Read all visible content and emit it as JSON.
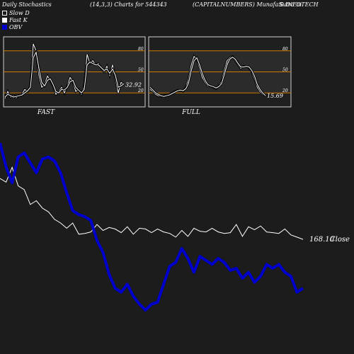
{
  "header": {
    "left": "Daily Stochastics",
    "middle": "(14,3,3) Charts for 544343",
    "right_title": "(CAPITALNUMBERS) MunafaSutra.in",
    "right_company": "S INFOTECH"
  },
  "legend": {
    "items": [
      "Slow  D",
      "Fast K",
      "OBV"
    ]
  },
  "colors": {
    "background": "#1c1c1c",
    "panel": "#2b2b2b",
    "level_line": "#cc7a00",
    "price_line": "#ffffff",
    "obv_line": "#0000cc"
  },
  "footer": "",
  "chart_data": [
    {
      "type": "line",
      "name_label": "FAST",
      "ylim": [
        0,
        100
      ],
      "levels": [
        20,
        50,
        80
      ],
      "level_labels": [
        "20",
        "50",
        "80"
      ],
      "last_value_label": "32.92",
      "series": [
        {
          "values": [
            12,
            22,
            14,
            16,
            13,
            17,
            18,
            25,
            22,
            30,
            90,
            80,
            45,
            28,
            32,
            44,
            38,
            30,
            18,
            22,
            28,
            20,
            30,
            42,
            36,
            22,
            25,
            18,
            30,
            75,
            62,
            66,
            60,
            62,
            55,
            50,
            58,
            45,
            60,
            40,
            20,
            35,
            32
          ]
        },
        {
          "values": [
            14,
            18,
            16,
            14,
            15,
            16,
            17,
            20,
            23,
            28,
            70,
            78,
            55,
            35,
            30,
            38,
            40,
            32,
            22,
            20,
            25,
            24,
            28,
            36,
            38,
            28,
            24,
            20,
            25,
            60,
            64,
            62,
            60,
            60,
            56,
            52,
            54,
            48,
            54,
            45,
            28,
            30,
            33
          ]
        }
      ]
    },
    {
      "type": "line",
      "name_label": "FULL",
      "ylim": [
        0,
        100
      ],
      "levels": [
        20,
        50,
        80
      ],
      "level_labels": [
        "20",
        "50",
        "80"
      ],
      "last_value_label": "15.69",
      "series": [
        {
          "values": [
            25,
            22,
            18,
            16,
            15,
            16,
            17,
            18,
            20,
            22,
            24,
            24,
            22,
            28,
            40,
            60,
            72,
            68,
            55,
            42,
            35,
            30,
            30,
            28,
            26,
            30,
            36,
            52,
            66,
            70,
            72,
            66,
            60,
            55,
            58,
            58,
            56,
            50,
            40,
            28,
            22,
            18,
            16
          ]
        },
        {
          "values": [
            28,
            24,
            20,
            18,
            16,
            15,
            16,
            17,
            19,
            21,
            23,
            24,
            23,
            26,
            34,
            52,
            66,
            70,
            60,
            48,
            38,
            32,
            30,
            29,
            27,
            29,
            33,
            46,
            60,
            68,
            71,
            68,
            62,
            57,
            57,
            58,
            57,
            52,
            44,
            32,
            25,
            20,
            16
          ]
        }
      ]
    },
    {
      "type": "line",
      "close_label": "168.10",
      "close_word": "Close",
      "series": [
        {
          "values": [
            250,
            245,
            265,
            240,
            235,
            215,
            220,
            210,
            205,
            195,
            190,
            183,
            190,
            175,
            176,
            178,
            188,
            180,
            184,
            182,
            177,
            185,
            175,
            183,
            182,
            177,
            182,
            178,
            176,
            171,
            180,
            172,
            183,
            179,
            178,
            183,
            178,
            176,
            177,
            188,
            172,
            185,
            181,
            186,
            178,
            177,
            176,
            182,
            174,
            171,
            168
          ]
        },
        {
          "values": [
            155,
            143,
            135,
            148,
            150,
            145,
            140,
            147,
            148,
            146,
            140,
            130,
            121,
            119,
            118,
            116,
            106,
            100,
            89,
            82,
            80,
            84,
            78,
            74,
            71,
            74,
            75,
            84,
            93,
            95,
            102,
            97,
            90,
            98,
            96,
            94,
            97,
            95,
            91,
            92,
            87,
            90,
            85,
            88,
            94,
            92,
            94,
            90,
            88,
            80,
            82
          ]
        }
      ]
    }
  ]
}
